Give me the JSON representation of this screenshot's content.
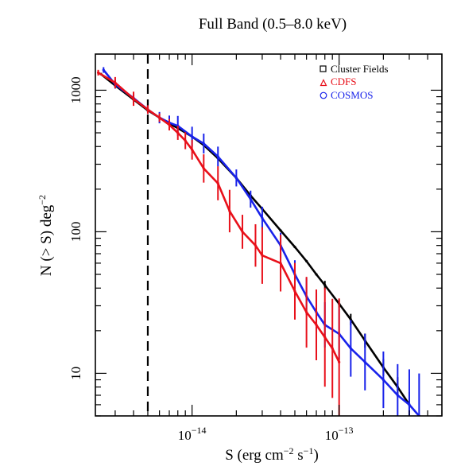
{
  "chart_data": {
    "type": "line",
    "title": "Full Band (0.5–8.0 keV)",
    "xlabel": "S (erg cm",
    "xlabel_sup1": "−2",
    "xlabel_mid": " s",
    "xlabel_sup2": "−1",
    "xlabel_end": ")",
    "ylabel": "N (> S) deg",
    "ylabel_sup": "−2",
    "x_scale": "log",
    "y_scale": "log",
    "xlim": [
      2.2e-15,
      5e-13
    ],
    "ylim": [
      5,
      1800
    ],
    "x_ticks": [
      {
        "value": 1e-14,
        "base": "10",
        "exp": "−14"
      },
      {
        "value": 1e-13,
        "base": "10",
        "exp": "−13"
      }
    ],
    "y_ticks": [
      {
        "value": 10,
        "label": "10"
      },
      {
        "value": 100,
        "label": "100"
      },
      {
        "value": 1000,
        "label": "1000"
      }
    ],
    "vertical_line": {
      "x": 5e-15,
      "style": "dashed",
      "color": "#000000"
    },
    "legend_position": "top-right",
    "grid": false,
    "series": [
      {
        "name": "Cluster Fields",
        "marker": "square",
        "color": "#000000",
        "x": [
          2.4e-15,
          3e-15,
          4e-15,
          5e-15,
          6e-15,
          7e-15,
          8e-15,
          1e-14,
          1.2e-14,
          1.5e-14,
          2e-14,
          2.5e-14,
          3e-14,
          4e-14,
          5e-14,
          6e-14,
          7e-14,
          8e-14,
          1e-13,
          1.2e-13,
          1.5e-13,
          2e-13,
          2.5e-13,
          3e-13
        ],
        "y": [
          1300,
          1080,
          860,
          720,
          640,
          580,
          540,
          470,
          410,
          330,
          240,
          180,
          145,
          102,
          78,
          62,
          50,
          42,
          31,
          24,
          17,
          11,
          8,
          6
        ],
        "yerr": [
          0,
          0,
          0,
          0,
          0,
          0,
          0,
          0,
          0,
          0,
          0,
          0,
          0,
          0,
          0,
          0,
          0,
          0.03,
          0.03,
          0.04,
          0.05,
          0.06,
          0.07,
          0.09
        ]
      },
      {
        "name": "CDFS",
        "marker": "triangle",
        "color": "#e8101a",
        "x": [
          2.3e-15,
          3e-15,
          4e-15,
          5e-15,
          6e-15,
          7e-15,
          8e-15,
          9e-15,
          1e-14,
          1.2e-14,
          1.5e-14,
          1.8e-14,
          2.2e-14,
          2.7e-14,
          3e-14,
          4e-14,
          5e-14,
          6e-14,
          7e-14,
          8e-14,
          9e-14,
          1e-13
        ],
        "y": [
          1330,
          1130,
          870,
          730,
          640,
          570,
          500,
          440,
          380,
          280,
          220,
          140,
          100,
          80,
          68,
          60,
          38,
          27,
          22,
          18,
          15,
          12
        ],
        "yerr": [
          0.02,
          0.04,
          0.05,
          0.03,
          0.03,
          0.04,
          0.05,
          0.06,
          0.07,
          0.1,
          0.12,
          0.15,
          0.12,
          0.15,
          0.2,
          0.2,
          0.2,
          0.25,
          0.25,
          0.35,
          0.35,
          0.45
        ]
      },
      {
        "name": "COSMOS",
        "marker": "circle",
        "color": "#1822ea",
        "x": [
          2.5e-15,
          3e-15,
          4e-15,
          5e-15,
          6e-15,
          7e-15,
          8e-15,
          1e-14,
          1.2e-14,
          1.5e-14,
          2e-14,
          2.5e-14,
          3e-14,
          4e-14,
          5e-14,
          6e-14,
          7e-14,
          8e-14,
          1e-13,
          1.2e-13,
          1.5e-13,
          2e-13,
          2.5e-13,
          3e-13,
          3.5e-13
        ],
        "y": [
          1390,
          1100,
          880,
          730,
          640,
          590,
          560,
          470,
          420,
          340,
          240,
          170,
          125,
          80,
          50,
          35,
          27,
          22,
          19,
          15,
          12,
          9,
          7,
          6,
          5
        ],
        "yerr": [
          0.02,
          0.03,
          0.03,
          0.03,
          0.04,
          0.05,
          0.07,
          0.07,
          0.07,
          0.07,
          0.06,
          0.06,
          0.08,
          0.09,
          0.1,
          0.13,
          0.14,
          0.16,
          0.18,
          0.2,
          0.2,
          0.2,
          0.22,
          0.25,
          0.3
        ]
      }
    ]
  }
}
